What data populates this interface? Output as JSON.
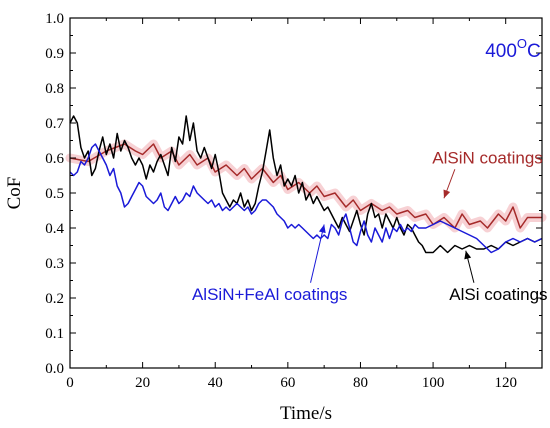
{
  "chart_data": {
    "type": "line",
    "title": "",
    "xlabel": "Time/s",
    "ylabel": "CoF",
    "xlim": [
      0,
      130
    ],
    "ylim": [
      0.0,
      1.0
    ],
    "xticks": [
      "0",
      "20",
      "40",
      "60",
      "80",
      "100",
      "120"
    ],
    "yticks": [
      "0.0",
      "0.1",
      "0.2",
      "0.3",
      "0.4",
      "0.5",
      "0.6",
      "0.7",
      "0.8",
      "0.9",
      "1.0"
    ],
    "grid": false,
    "condition_label": {
      "main": "400",
      "superscript": "O",
      "unit": "C"
    },
    "series": [
      {
        "name": "AlSiN coatings",
        "color": "#a52a2a",
        "band_color": "#f6c9cc",
        "values": [
          [
            0,
            0.6
          ],
          [
            5,
            0.59
          ],
          [
            10,
            0.62
          ],
          [
            15,
            0.64
          ],
          [
            18,
            0.62
          ],
          [
            20,
            0.61
          ],
          [
            23,
            0.64
          ],
          [
            25,
            0.6
          ],
          [
            28,
            0.62
          ],
          [
            30,
            0.58
          ],
          [
            33,
            0.61
          ],
          [
            35,
            0.58
          ],
          [
            38,
            0.6
          ],
          [
            40,
            0.56
          ],
          [
            43,
            0.58
          ],
          [
            46,
            0.55
          ],
          [
            48,
            0.57
          ],
          [
            50,
            0.54
          ],
          [
            53,
            0.57
          ],
          [
            56,
            0.53
          ],
          [
            58,
            0.55
          ],
          [
            60,
            0.51
          ],
          [
            63,
            0.53
          ],
          [
            66,
            0.5
          ],
          [
            68,
            0.52
          ],
          [
            70,
            0.49
          ],
          [
            73,
            0.5
          ],
          [
            76,
            0.46
          ],
          [
            78,
            0.48
          ],
          [
            80,
            0.45
          ],
          [
            83,
            0.47
          ],
          [
            86,
            0.45
          ],
          [
            88,
            0.46
          ],
          [
            90,
            0.44
          ],
          [
            93,
            0.45
          ],
          [
            95,
            0.43
          ],
          [
            98,
            0.44
          ],
          [
            100,
            0.41
          ],
          [
            103,
            0.43
          ],
          [
            106,
            0.4
          ],
          [
            108,
            0.44
          ],
          [
            110,
            0.41
          ],
          [
            113,
            0.42
          ],
          [
            115,
            0.4
          ],
          [
            118,
            0.44
          ],
          [
            120,
            0.42
          ],
          [
            122,
            0.46
          ],
          [
            124,
            0.4
          ],
          [
            126,
            0.43
          ],
          [
            130,
            0.43
          ]
        ]
      },
      {
        "name": "AlSi coatings",
        "color": "#000000",
        "values": [
          [
            0,
            0.7
          ],
          [
            1,
            0.72
          ],
          [
            2,
            0.7
          ],
          [
            3,
            0.63
          ],
          [
            4,
            0.6
          ],
          [
            5,
            0.62
          ],
          [
            6,
            0.55
          ],
          [
            7,
            0.57
          ],
          [
            8,
            0.62
          ],
          [
            9,
            0.66
          ],
          [
            10,
            0.61
          ],
          [
            11,
            0.64
          ],
          [
            12,
            0.6
          ],
          [
            13,
            0.67
          ],
          [
            14,
            0.62
          ],
          [
            15,
            0.65
          ],
          [
            16,
            0.63
          ],
          [
            17,
            0.6
          ],
          [
            18,
            0.58
          ],
          [
            19,
            0.6
          ],
          [
            20,
            0.58
          ],
          [
            21,
            0.54
          ],
          [
            22,
            0.58
          ],
          [
            23,
            0.56
          ],
          [
            24,
            0.59
          ],
          [
            25,
            0.61
          ],
          [
            26,
            0.58
          ],
          [
            27,
            0.55
          ],
          [
            28,
            0.63
          ],
          [
            29,
            0.59
          ],
          [
            30,
            0.66
          ],
          [
            31,
            0.64
          ],
          [
            32,
            0.72
          ],
          [
            33,
            0.65
          ],
          [
            34,
            0.7
          ],
          [
            35,
            0.62
          ],
          [
            36,
            0.6
          ],
          [
            37,
            0.63
          ],
          [
            38,
            0.6
          ],
          [
            39,
            0.57
          ],
          [
            40,
            0.61
          ],
          [
            41,
            0.56
          ],
          [
            42,
            0.5
          ],
          [
            43,
            0.48
          ],
          [
            44,
            0.46
          ],
          [
            45,
            0.48
          ],
          [
            46,
            0.47
          ],
          [
            47,
            0.5
          ],
          [
            48,
            0.46
          ],
          [
            49,
            0.48
          ],
          [
            50,
            0.45
          ],
          [
            51,
            0.47
          ],
          [
            52,
            0.52
          ],
          [
            53,
            0.56
          ],
          [
            54,
            0.62
          ],
          [
            55,
            0.68
          ],
          [
            56,
            0.6
          ],
          [
            57,
            0.55
          ],
          [
            58,
            0.58
          ],
          [
            59,
            0.52
          ],
          [
            60,
            0.54
          ],
          [
            61,
            0.52
          ],
          [
            62,
            0.55
          ],
          [
            63,
            0.5
          ],
          [
            64,
            0.53
          ],
          [
            65,
            0.48
          ],
          [
            66,
            0.5
          ],
          [
            67,
            0.47
          ],
          [
            68,
            0.49
          ],
          [
            69,
            0.47
          ],
          [
            70,
            0.45
          ],
          [
            71,
            0.46
          ],
          [
            72,
            0.44
          ],
          [
            73,
            0.42
          ],
          [
            74,
            0.4
          ],
          [
            75,
            0.43
          ],
          [
            76,
            0.41
          ],
          [
            77,
            0.39
          ],
          [
            78,
            0.42
          ],
          [
            79,
            0.45
          ],
          [
            80,
            0.41
          ],
          [
            81,
            0.38
          ],
          [
            82,
            0.44
          ],
          [
            83,
            0.47
          ],
          [
            84,
            0.43
          ],
          [
            85,
            0.44
          ],
          [
            86,
            0.4
          ],
          [
            87,
            0.44
          ],
          [
            88,
            0.42
          ],
          [
            89,
            0.4
          ],
          [
            90,
            0.43
          ],
          [
            91,
            0.4
          ],
          [
            92,
            0.38
          ],
          [
            93,
            0.41
          ],
          [
            94,
            0.4
          ],
          [
            95,
            0.38
          ],
          [
            96,
            0.36
          ],
          [
            97,
            0.35
          ],
          [
            98,
            0.33
          ],
          [
            100,
            0.33
          ],
          [
            102,
            0.35
          ],
          [
            104,
            0.33
          ],
          [
            106,
            0.35
          ],
          [
            108,
            0.34
          ],
          [
            110,
            0.35
          ],
          [
            112,
            0.34
          ],
          [
            114,
            0.34
          ],
          [
            116,
            0.35
          ],
          [
            118,
            0.34
          ],
          [
            120,
            0.36
          ],
          [
            122,
            0.35
          ],
          [
            124,
            0.36
          ],
          [
            126,
            0.37
          ],
          [
            128,
            0.36
          ],
          [
            130,
            0.37
          ]
        ]
      },
      {
        "name": "AlSiN+FeAl coatings",
        "color": "#1a1ad8",
        "values": [
          [
            0,
            0.56
          ],
          [
            1,
            0.55
          ],
          [
            2,
            0.56
          ],
          [
            3,
            0.59
          ],
          [
            4,
            0.58
          ],
          [
            5,
            0.6
          ],
          [
            6,
            0.63
          ],
          [
            7,
            0.64
          ],
          [
            8,
            0.62
          ],
          [
            9,
            0.6
          ],
          [
            10,
            0.58
          ],
          [
            11,
            0.55
          ],
          [
            12,
            0.57
          ],
          [
            13,
            0.52
          ],
          [
            14,
            0.5
          ],
          [
            15,
            0.46
          ],
          [
            16,
            0.47
          ],
          [
            17,
            0.49
          ],
          [
            18,
            0.51
          ],
          [
            19,
            0.53
          ],
          [
            20,
            0.52
          ],
          [
            21,
            0.49
          ],
          [
            22,
            0.48
          ],
          [
            23,
            0.47
          ],
          [
            24,
            0.48
          ],
          [
            25,
            0.5
          ],
          [
            26,
            0.46
          ],
          [
            27,
            0.45
          ],
          [
            28,
            0.47
          ],
          [
            29,
            0.49
          ],
          [
            30,
            0.47
          ],
          [
            31,
            0.48
          ],
          [
            32,
            0.5
          ],
          [
            33,
            0.49
          ],
          [
            34,
            0.52
          ],
          [
            35,
            0.5
          ],
          [
            36,
            0.49
          ],
          [
            37,
            0.48
          ],
          [
            38,
            0.47
          ],
          [
            39,
            0.48
          ],
          [
            40,
            0.46
          ],
          [
            41,
            0.47
          ],
          [
            42,
            0.45
          ],
          [
            43,
            0.46
          ],
          [
            44,
            0.45
          ],
          [
            45,
            0.46
          ],
          [
            46,
            0.47
          ],
          [
            47,
            0.46
          ],
          [
            48,
            0.45
          ],
          [
            49,
            0.46
          ],
          [
            50,
            0.44
          ],
          [
            51,
            0.45
          ],
          [
            52,
            0.47
          ],
          [
            53,
            0.48
          ],
          [
            54,
            0.48
          ],
          [
            55,
            0.47
          ],
          [
            56,
            0.46
          ],
          [
            57,
            0.44
          ],
          [
            58,
            0.43
          ],
          [
            59,
            0.42
          ],
          [
            60,
            0.4
          ],
          [
            61,
            0.41
          ],
          [
            62,
            0.4
          ],
          [
            63,
            0.41
          ],
          [
            64,
            0.4
          ],
          [
            65,
            0.39
          ],
          [
            66,
            0.38
          ],
          [
            67,
            0.37
          ],
          [
            68,
            0.38
          ],
          [
            69,
            0.37
          ],
          [
            70,
            0.38
          ],
          [
            71,
            0.37
          ],
          [
            72,
            0.41
          ],
          [
            73,
            0.4
          ],
          [
            74,
            0.38
          ],
          [
            75,
            0.42
          ],
          [
            76,
            0.44
          ],
          [
            77,
            0.4
          ],
          [
            78,
            0.36
          ],
          [
            79,
            0.35
          ],
          [
            80,
            0.39
          ],
          [
            81,
            0.42
          ],
          [
            82,
            0.38
          ],
          [
            83,
            0.36
          ],
          [
            84,
            0.4
          ],
          [
            85,
            0.38
          ],
          [
            86,
            0.36
          ],
          [
            87,
            0.4
          ],
          [
            88,
            0.37
          ],
          [
            89,
            0.4
          ],
          [
            90,
            0.39
          ],
          [
            91,
            0.41
          ],
          [
            92,
            0.39
          ],
          [
            93,
            0.4
          ],
          [
            94,
            0.39
          ],
          [
            95,
            0.41
          ],
          [
            96,
            0.4
          ],
          [
            98,
            0.4
          ],
          [
            100,
            0.41
          ],
          [
            102,
            0.42
          ],
          [
            104,
            0.41
          ],
          [
            106,
            0.4
          ],
          [
            108,
            0.39
          ],
          [
            110,
            0.38
          ],
          [
            112,
            0.37
          ],
          [
            114,
            0.35
          ],
          [
            116,
            0.33
          ],
          [
            118,
            0.34
          ],
          [
            120,
            0.36
          ],
          [
            122,
            0.37
          ],
          [
            124,
            0.36
          ],
          [
            126,
            0.37
          ],
          [
            128,
            0.36
          ],
          [
            130,
            0.37
          ]
        ]
      }
    ],
    "annotations": [
      {
        "text": "AlSiN coatings",
        "series": 0,
        "color": "#a52a2a",
        "arrow_to": [
          103,
          0.485
        ],
        "label_at": [
          115,
          0.585
        ]
      },
      {
        "text": "AlSiN+FeAl coatings",
        "series": 2,
        "color": "#1a1ad8",
        "arrow_to": [
          70,
          0.41
        ],
        "label_at": [
          55,
          0.195
        ]
      },
      {
        "text": "AlSi coatings",
        "series": 1,
        "color": "#000000",
        "arrow_to": [
          109,
          0.335
        ],
        "label_at": [
          118,
          0.195
        ]
      }
    ]
  }
}
